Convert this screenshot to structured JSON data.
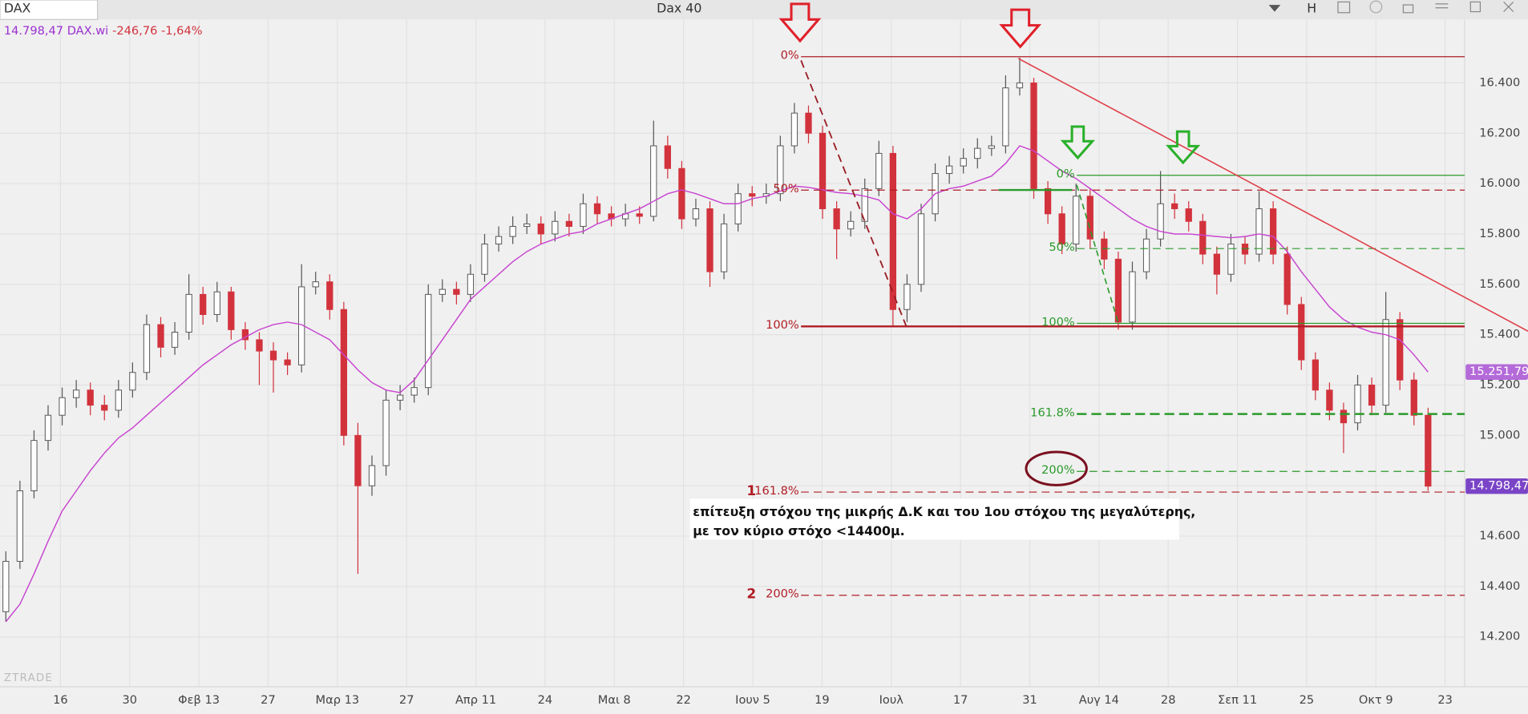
{
  "header": {
    "symbol": "DAX",
    "title": "Dax 40",
    "button": "H"
  },
  "chart_data": {
    "type": "candlestick",
    "quote": {
      "name": "14.798,47 DAX.wi",
      "change": "-246,76 -1,64%"
    },
    "watermark": "ZTRADE",
    "x_labels": [
      "16",
      "30",
      "Φεβ 13",
      "27",
      "Μαρ 13",
      "27",
      "Απρ 11",
      "24",
      "Μαι 8",
      "22",
      "Ιουν 5",
      "19",
      "Ιουλ",
      "17",
      "31",
      "Αυγ 14",
      "28",
      "Σεπ 11",
      "25",
      "Οκτ 9",
      "23"
    ],
    "ylim": [
      14002,
      16644
    ],
    "yticks": [
      {
        "value": 14200,
        "label": "14.200"
      },
      {
        "value": 14400,
        "label": "14.400"
      },
      {
        "value": 14600,
        "label": "14.600"
      },
      {
        "value": 14800,
        "label": "14.800"
      },
      {
        "value": 15000,
        "label": "15.000"
      },
      {
        "value": 15200,
        "label": "15.200"
      },
      {
        "value": 15400,
        "label": "15.400"
      },
      {
        "value": 15600,
        "label": "15.600"
      },
      {
        "value": 15800,
        "label": "15.800"
      },
      {
        "value": 16000,
        "label": "16.000"
      },
      {
        "value": 16200,
        "label": "16.200"
      },
      {
        "value": 16400,
        "label": "16.400"
      }
    ],
    "grid": true,
    "up_color": "#ffffff",
    "down_color": "#d2323c",
    "ohlc": [
      [
        14300,
        14540,
        14260,
        14500
      ],
      [
        14500,
        14820,
        14470,
        14780
      ],
      [
        14780,
        15020,
        14750,
        14980
      ],
      [
        14980,
        15120,
        14940,
        15080
      ],
      [
        15080,
        15190,
        15040,
        15150
      ],
      [
        15150,
        15220,
        15110,
        15180
      ],
      [
        15180,
        15210,
        15080,
        15120
      ],
      [
        15120,
        15160,
        15060,
        15100
      ],
      [
        15100,
        15220,
        15070,
        15180
      ],
      [
        15180,
        15290,
        15150,
        15250
      ],
      [
        15250,
        15480,
        15220,
        15440
      ],
      [
        15440,
        15470,
        15310,
        15350
      ],
      [
        15350,
        15450,
        15320,
        15410
      ],
      [
        15410,
        15640,
        15380,
        15560
      ],
      [
        15560,
        15590,
        15440,
        15480
      ],
      [
        15480,
        15610,
        15450,
        15570
      ],
      [
        15570,
        15590,
        15380,
        15420
      ],
      [
        15420,
        15450,
        15340,
        15380
      ],
      [
        15380,
        15410,
        15200,
        15335
      ],
      [
        15335,
        15370,
        15170,
        15300
      ],
      [
        15300,
        15330,
        15240,
        15280
      ],
      [
        15280,
        15680,
        15250,
        15590
      ],
      [
        15590,
        15650,
        15560,
        15610
      ],
      [
        15610,
        15640,
        15460,
        15500
      ],
      [
        15500,
        15530,
        14960,
        15000
      ],
      [
        15000,
        15050,
        14450,
        14800
      ],
      [
        14800,
        14920,
        14760,
        14880
      ],
      [
        14880,
        15180,
        14840,
        15140
      ],
      [
        15140,
        15200,
        15100,
        15160
      ],
      [
        15160,
        15230,
        15130,
        15190
      ],
      [
        15190,
        15600,
        15160,
        15560
      ],
      [
        15560,
        15620,
        15530,
        15580
      ],
      [
        15580,
        15610,
        15520,
        15560
      ],
      [
        15560,
        15680,
        15530,
        15640
      ],
      [
        15640,
        15800,
        15610,
        15760
      ],
      [
        15760,
        15830,
        15730,
        15790
      ],
      [
        15790,
        15870,
        15760,
        15830
      ],
      [
        15830,
        15880,
        15800,
        15840
      ],
      [
        15840,
        15870,
        15760,
        15800
      ],
      [
        15800,
        15890,
        15770,
        15850
      ],
      [
        15850,
        15880,
        15790,
        15830
      ],
      [
        15830,
        15960,
        15800,
        15920
      ],
      [
        15920,
        15950,
        15840,
        15880
      ],
      [
        15880,
        15910,
        15830,
        15860
      ],
      [
        15860,
        15920,
        15830,
        15880
      ],
      [
        15880,
        15910,
        15840,
        15870
      ],
      [
        15870,
        16250,
        15850,
        16150
      ],
      [
        16150,
        16190,
        16020,
        16060
      ],
      [
        16060,
        16090,
        15820,
        15860
      ],
      [
        15860,
        15940,
        15830,
        15900
      ],
      [
        15900,
        15930,
        15590,
        15650
      ],
      [
        15650,
        15880,
        15620,
        15840
      ],
      [
        15840,
        16000,
        15810,
        15960
      ],
      [
        15960,
        15990,
        15910,
        15950
      ],
      [
        15950,
        16000,
        15920,
        15960
      ],
      [
        15960,
        16190,
        15930,
        16150
      ],
      [
        16150,
        16320,
        16120,
        16280
      ],
      [
        16280,
        16310,
        16160,
        16200
      ],
      [
        16200,
        16230,
        15860,
        15900
      ],
      [
        15900,
        15930,
        15700,
        15820
      ],
      [
        15820,
        15890,
        15790,
        15850
      ],
      [
        15850,
        16020,
        15820,
        15980
      ],
      [
        15980,
        16170,
        15950,
        16120
      ],
      [
        16120,
        16150,
        15430,
        15500
      ],
      [
        15500,
        15640,
        15450,
        15600
      ],
      [
        15600,
        15920,
        15570,
        15880
      ],
      [
        15880,
        16080,
        15850,
        16040
      ],
      [
        16040,
        16110,
        16000,
        16070
      ],
      [
        16070,
        16140,
        16040,
        16100
      ],
      [
        16100,
        16180,
        16060,
        16140
      ],
      [
        16140,
        16190,
        16110,
        16150
      ],
      [
        16150,
        16430,
        16120,
        16380
      ],
      [
        16380,
        16500,
        16350,
        16400
      ],
      [
        16400,
        16420,
        15940,
        15980
      ],
      [
        15980,
        16010,
        15840,
        15880
      ],
      [
        15880,
        15910,
        15720,
        15760
      ],
      [
        15760,
        16000,
        15730,
        15950
      ],
      [
        15950,
        15980,
        15740,
        15780
      ],
      [
        15780,
        15810,
        15660,
        15700
      ],
      [
        15700,
        15730,
        15420,
        15450
      ],
      [
        15450,
        15690,
        15420,
        15650
      ],
      [
        15650,
        15820,
        15620,
        15780
      ],
      [
        15780,
        16050,
        15750,
        15920
      ],
      [
        15920,
        15960,
        15860,
        15900
      ],
      [
        15900,
        15930,
        15810,
        15850
      ],
      [
        15850,
        15880,
        15680,
        15720
      ],
      [
        15720,
        15750,
        15560,
        15640
      ],
      [
        15640,
        15800,
        15610,
        15760
      ],
      [
        15760,
        15790,
        15680,
        15720
      ],
      [
        15720,
        15970,
        15690,
        15900
      ],
      [
        15900,
        15930,
        15680,
        15720
      ],
      [
        15720,
        15750,
        15480,
        15520
      ],
      [
        15520,
        15550,
        15260,
        15300
      ],
      [
        15300,
        15330,
        15140,
        15180
      ],
      [
        15180,
        15210,
        15060,
        15100
      ],
      [
        15100,
        15130,
        14930,
        15050
      ],
      [
        15050,
        15240,
        15020,
        15200
      ],
      [
        15200,
        15230,
        15080,
        15120
      ],
      [
        15120,
        15570,
        15090,
        15460
      ],
      [
        15460,
        15490,
        15180,
        15220
      ],
      [
        15220,
        15250,
        15040,
        15080
      ],
      [
        15080,
        15110,
        14780,
        14798.47
      ]
    ],
    "ma": {
      "color": "#c845d0",
      "values": [
        14260,
        14330,
        14450,
        14580,
        14700,
        14780,
        14860,
        14930,
        14990,
        15030,
        15080,
        15130,
        15180,
        15230,
        15280,
        15320,
        15360,
        15390,
        15420,
        15440,
        15450,
        15440,
        15410,
        15380,
        15320,
        15260,
        15210,
        15180,
        15170,
        15220,
        15300,
        15380,
        15460,
        15540,
        15590,
        15640,
        15690,
        15730,
        15760,
        15780,
        15800,
        15810,
        15840,
        15860,
        15880,
        15900,
        15930,
        15960,
        15975,
        15960,
        15940,
        15920,
        15920,
        15940,
        15950,
        15970,
        15990,
        15985,
        15975,
        15965,
        15960,
        15950,
        15935,
        15880,
        15860,
        15900,
        15960,
        15980,
        15990,
        16010,
        16030,
        16080,
        16150,
        16130,
        16090,
        16050,
        16020,
        15980,
        15940,
        15900,
        15860,
        15830,
        15810,
        15800,
        15800,
        15795,
        15790,
        15785,
        15790,
        15800,
        15790,
        15730,
        15650,
        15580,
        15510,
        15460,
        15430,
        15410,
        15400,
        15380,
        15320,
        15251.79
      ]
    },
    "fib_large": {
      "color": "#b01c24",
      "levels": [
        {
          "label": "0%",
          "value": 16504,
          "dash": "solid"
        },
        {
          "label": "50%",
          "value": 15974,
          "dash": "dashed"
        },
        {
          "label": "100%",
          "value": 15433,
          "dash": "solid"
        },
        {
          "tag": "1",
          "label": "161.8%",
          "value": 14775,
          "dash": "dashed"
        },
        {
          "tag": "2",
          "label": "200%",
          "value": 14365,
          "dash": "dashed"
        }
      ]
    },
    "fib_small": {
      "color": "#2a9a2a",
      "levels": [
        {
          "label": "0%",
          "value": 16033,
          "dash": "solid"
        },
        {
          "label": "50%",
          "value": 15742,
          "dash": "dashed"
        },
        {
          "label": "100%",
          "value": 15445,
          "dash": "solid"
        },
        {
          "label": "161.8%",
          "value": 15085,
          "dash": "bold"
        },
        {
          "label": "200%",
          "value": 14857,
          "dash": "dashed"
        }
      ]
    },
    "price_tags": [
      {
        "value": 15251.79,
        "label": "15.251,79",
        "color": "#b46ad8"
      },
      {
        "value": 14798.47,
        "label": "14.798,47",
        "color": "#7a44c6"
      }
    ],
    "note": [
      "επίτευξη στόχου της μικρής Δ.Κ και του 1ου στόχου της μεγαλύτερης,",
      "με τον κύριο στόχο <14400μ."
    ]
  }
}
